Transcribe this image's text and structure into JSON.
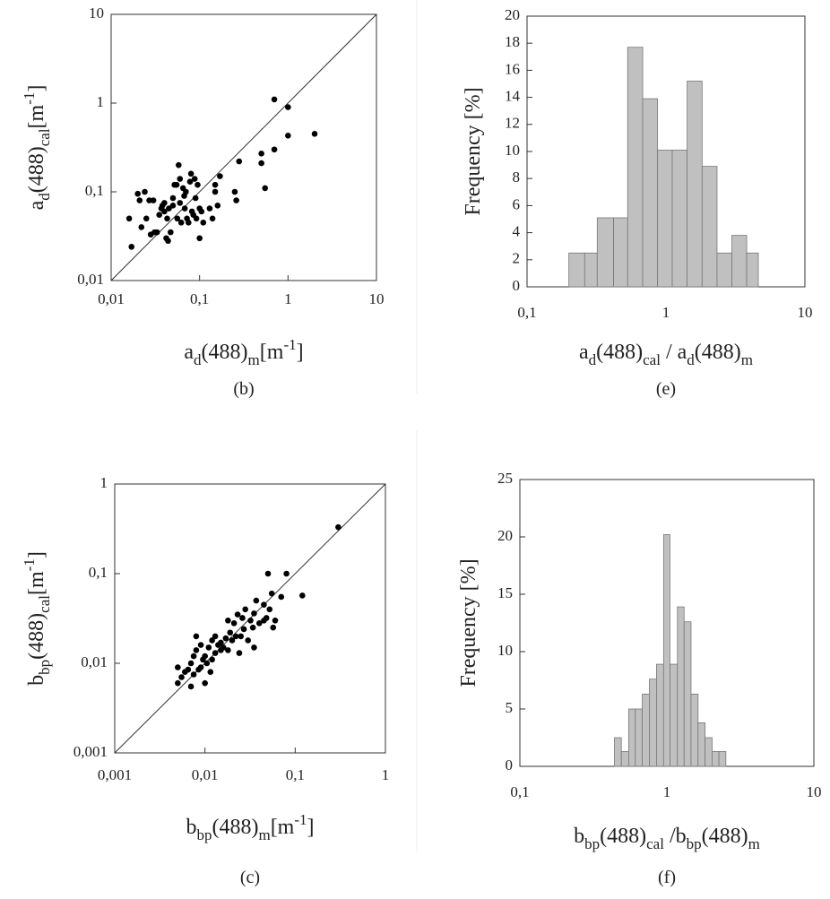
{
  "chart_data": [
    {
      "type": "scatter",
      "panel": "(b)",
      "xscale": "log",
      "yscale": "log",
      "color": "#000000",
      "xlabel": [
        "a",
        "d",
        "(488)",
        "m",
        "[m",
        "-1",
        "]"
      ],
      "ylabel": [
        "a",
        "d",
        "(488)",
        "cal",
        "[m",
        "-1",
        "]"
      ],
      "xlim": [
        0.01,
        10
      ],
      "ylim": [
        0.01,
        10
      ],
      "xticks": [
        {
          "value": 0.01,
          "label": "0,01"
        },
        {
          "value": 0.1,
          "label": "0,1"
        },
        1,
        10
      ],
      "yticks": [
        {
          "value": 0.01,
          "label": "0,01"
        },
        {
          "value": 0.1,
          "label": "0,1"
        },
        1,
        10
      ],
      "x": [
        0.016,
        0.017,
        0.02,
        0.021,
        0.022,
        0.024,
        0.025,
        0.027,
        0.028,
        0.03,
        0.031,
        0.033,
        0.035,
        0.037,
        0.038,
        0.04,
        0.04,
        0.042,
        0.043,
        0.044,
        0.045,
        0.047,
        0.05,
        0.05,
        0.052,
        0.055,
        0.056,
        0.058,
        0.06,
        0.06,
        0.062,
        0.065,
        0.067,
        0.068,
        0.07,
        0.072,
        0.075,
        0.078,
        0.08,
        0.082,
        0.085,
        0.088,
        0.09,
        0.092,
        0.095,
        0.1,
        0.1,
        0.105,
        0.11,
        0.13,
        0.14,
        0.15,
        0.15,
        0.16,
        0.17,
        0.25,
        0.26,
        0.28,
        0.5,
        0.5,
        0.55,
        0.7,
        0.7,
        1.0,
        1.0,
        2.0
      ],
      "values": [
        0.05,
        0.024,
        0.095,
        0.08,
        0.04,
        0.1,
        0.05,
        0.08,
        0.033,
        0.08,
        0.035,
        0.035,
        0.055,
        0.065,
        0.07,
        0.06,
        0.075,
        0.03,
        0.05,
        0.028,
        0.065,
        0.035,
        0.07,
        0.085,
        0.12,
        0.12,
        0.05,
        0.2,
        0.14,
        0.075,
        0.045,
        0.11,
        0.09,
        0.065,
        0.1,
        0.05,
        0.045,
        0.13,
        0.16,
        0.06,
        0.055,
        0.14,
        0.085,
        0.05,
        0.12,
        0.065,
        0.03,
        0.06,
        0.045,
        0.065,
        0.05,
        0.1,
        0.12,
        0.07,
        0.15,
        0.1,
        0.08,
        0.22,
        0.27,
        0.21,
        0.11,
        1.1,
        0.3,
        0.9,
        0.43,
        0.45
      ]
    },
    {
      "type": "histogram",
      "panel": "(e)",
      "xscale": "log",
      "color": "#c0c0c0",
      "xlabel": [
        "a",
        "d",
        "(488)",
        "cal",
        " / a",
        "d",
        "(488)",
        "m"
      ],
      "ylabel": [
        "Frequency [%]"
      ],
      "xlim": [
        0.1,
        10
      ],
      "ylim": [
        0,
        20
      ],
      "xticks": [
        {
          "value": 0.1,
          "label": "0,1"
        },
        1,
        10
      ],
      "yticks": [
        0,
        2,
        4,
        6,
        8,
        10,
        12,
        14,
        16,
        18,
        20
      ],
      "bins": [
        0.2,
        0.26,
        0.32,
        0.42,
        0.53,
        0.68,
        0.87,
        1.11,
        1.42,
        1.82,
        2.33,
        2.98,
        3.81,
        4.62
      ],
      "values": [
        2.5,
        2.5,
        5.1,
        5.1,
        17.7,
        13.9,
        10.1,
        10.1,
        15.2,
        8.9,
        2.5,
        3.8,
        2.5
      ]
    },
    {
      "type": "scatter",
      "panel": "(c)",
      "xscale": "log",
      "yscale": "log",
      "color": "#000000",
      "xlabel": [
        "b",
        "bp",
        "(488)",
        "m",
        "[m",
        "-1",
        "]"
      ],
      "ylabel": [
        "b",
        "bp",
        "(488)",
        "cal",
        "[m",
        "-1",
        "]"
      ],
      "xlim": [
        0.001,
        1
      ],
      "ylim": [
        0.001,
        1
      ],
      "xticks": [
        {
          "value": 0.001,
          "label": "0,001"
        },
        {
          "value": 0.01,
          "label": "0,01"
        },
        {
          "value": 0.1,
          "label": "0,1"
        },
        1
      ],
      "yticks": [
        {
          "value": 0.001,
          "label": "0,001"
        },
        {
          "value": 0.01,
          "label": "0,01"
        },
        {
          "value": 0.1,
          "label": "0,1"
        },
        1
      ],
      "x": [
        0.005,
        0.005,
        0.0055,
        0.006,
        0.0065,
        0.007,
        0.007,
        0.0075,
        0.0075,
        0.008,
        0.008,
        0.0085,
        0.009,
        0.0095,
        0.01,
        0.01,
        0.0105,
        0.011,
        0.0115,
        0.012,
        0.012,
        0.013,
        0.014,
        0.015,
        0.016,
        0.017,
        0.018,
        0.019,
        0.02,
        0.021,
        0.022,
        0.023,
        0.024,
        0.025,
        0.027,
        0.03,
        0.032,
        0.034,
        0.035,
        0.037,
        0.04,
        0.045,
        0.048,
        0.05,
        0.052,
        0.055,
        0.057,
        0.06,
        0.07,
        0.08,
        0.12,
        0.3,
        0.018,
        0.026,
        0.013,
        0.009,
        0.015,
        0.045,
        0.035,
        0.028
      ],
      "values": [
        0.006,
        0.009,
        0.007,
        0.008,
        0.0085,
        0.0055,
        0.01,
        0.012,
        0.0075,
        0.014,
        0.02,
        0.0085,
        0.009,
        0.011,
        0.006,
        0.012,
        0.01,
        0.015,
        0.008,
        0.011,
        0.018,
        0.013,
        0.016,
        0.017,
        0.015,
        0.019,
        0.014,
        0.022,
        0.018,
        0.028,
        0.02,
        0.035,
        0.013,
        0.02,
        0.024,
        0.018,
        0.03,
        0.025,
        0.036,
        0.05,
        0.028,
        0.03,
        0.032,
        0.1,
        0.04,
        0.06,
        0.025,
        0.03,
        0.055,
        0.1,
        0.057,
        0.33,
        0.03,
        0.032,
        0.02,
        0.016,
        0.014,
        0.045,
        0.015,
        0.04
      ]
    },
    {
      "type": "histogram",
      "panel": "(f)",
      "xscale": "log",
      "color": "#c0c0c0",
      "xlabel": [
        "b",
        "bp",
        "(488)",
        "cal",
        " /b",
        "bp",
        "(488)",
        "m"
      ],
      "ylabel": [
        "Frequency [%]"
      ],
      "xlim": [
        0.1,
        10
      ],
      "ylim": [
        0,
        25
      ],
      "xticks": [
        {
          "value": 0.1,
          "label": "0,1"
        },
        1,
        10
      ],
      "yticks": [
        0,
        5,
        10,
        15,
        20,
        25
      ],
      "bins": [
        0.44,
        0.49,
        0.55,
        0.61,
        0.68,
        0.76,
        0.85,
        0.95,
        1.05,
        1.18,
        1.31,
        1.46,
        1.63,
        1.82,
        2.03,
        2.26,
        2.52
      ],
      "values": [
        2.5,
        1.3,
        5,
        5,
        6.3,
        7.6,
        8.9,
        20.2,
        8.9,
        13.9,
        12.6,
        6.3,
        3.8,
        2.5,
        1.3,
        1.3
      ]
    }
  ]
}
